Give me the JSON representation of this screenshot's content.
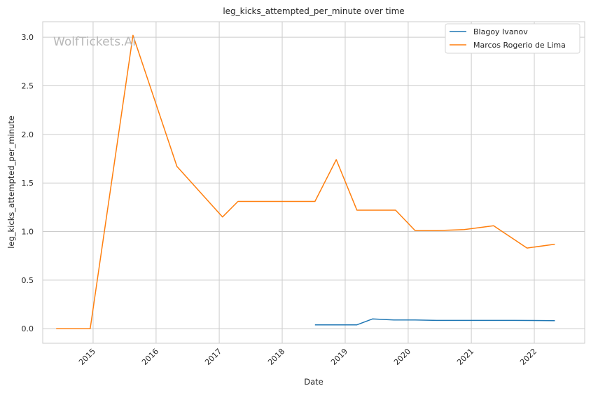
{
  "chart_data": {
    "type": "line",
    "title": "leg_kicks_attempted_per_minute over time",
    "xlabel": "Date",
    "ylabel": "leg_kicks_attempted_per_minute",
    "watermark": "WolfTickets.AI",
    "x_ticks": [
      "2015",
      "2016",
      "2017",
      "2018",
      "2019",
      "2020",
      "2021",
      "2022"
    ],
    "y_ticks": [
      "0.0",
      "0.5",
      "1.0",
      "1.5",
      "2.0",
      "2.5",
      "3.0"
    ],
    "xlim": [
      "2014-03-15",
      "2022-10-20"
    ],
    "ylim": [
      -0.15,
      3.16
    ],
    "grid": true,
    "legend_position": "top-right",
    "series": [
      {
        "name": "Blagoy Ivanov",
        "color": "#1f77b4",
        "points": [
          [
            "2018-07-10",
            0.04
          ],
          [
            "2018-11-15",
            0.04
          ],
          [
            "2019-03-10",
            0.04
          ],
          [
            "2019-06-08",
            0.1
          ],
          [
            "2019-10-10",
            0.09
          ],
          [
            "2020-02-10",
            0.09
          ],
          [
            "2020-06-15",
            0.085
          ],
          [
            "2021-01-10",
            0.085
          ],
          [
            "2021-09-10",
            0.085
          ],
          [
            "2022-04-30",
            0.083
          ]
        ]
      },
      {
        "name": "Marcos Rogerio de Lima",
        "color": "#ff7f0e",
        "points": [
          [
            "2014-06-01",
            0.0
          ],
          [
            "2014-12-15",
            0.0
          ],
          [
            "2015-08-20",
            3.02
          ],
          [
            "2016-05-01",
            1.67
          ],
          [
            "2017-01-20",
            1.15
          ],
          [
            "2017-04-20",
            1.31
          ],
          [
            "2018-07-10",
            1.31
          ],
          [
            "2018-11-10",
            1.74
          ],
          [
            "2019-03-10",
            1.22
          ],
          [
            "2019-10-20",
            1.22
          ],
          [
            "2020-02-10",
            1.01
          ],
          [
            "2020-06-15",
            1.01
          ],
          [
            "2020-11-20",
            1.02
          ],
          [
            "2021-05-10",
            1.06
          ],
          [
            "2021-11-20",
            0.83
          ],
          [
            "2022-04-30",
            0.87
          ]
        ]
      }
    ]
  }
}
